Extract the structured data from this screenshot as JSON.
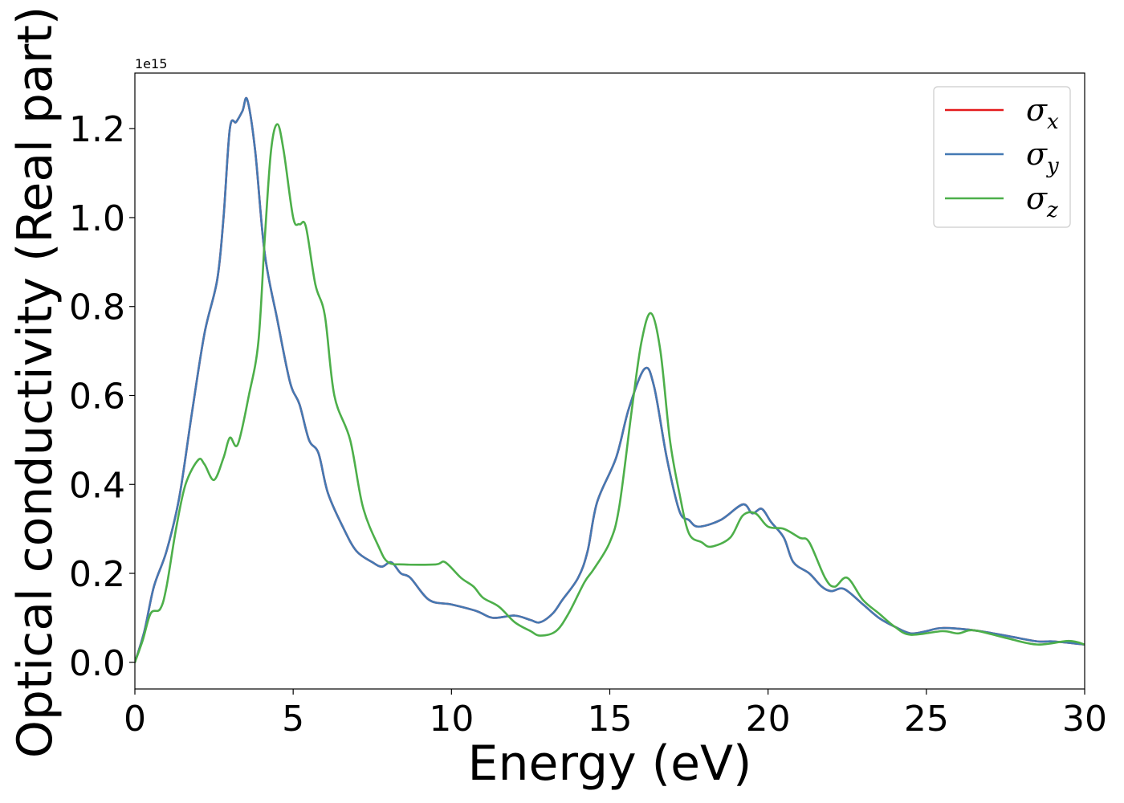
{
  "chart_data": {
    "type": "line",
    "title": "",
    "xlabel": "Energy (eV)",
    "ylabel": "Optical conductivity (Real part)",
    "y_offset_label": "1e15",
    "xlim": [
      0,
      30
    ],
    "ylim": [
      -0.06,
      1.325
    ],
    "x_ticks": [
      0,
      5,
      10,
      15,
      20,
      25,
      30
    ],
    "x_tick_labels": [
      "0",
      "5",
      "10",
      "15",
      "20",
      "25",
      "30"
    ],
    "y_ticks": [
      0.0,
      0.2,
      0.4,
      0.6,
      0.8,
      1.0,
      1.2
    ],
    "y_tick_labels": [
      "0.0",
      "0.2",
      "0.4",
      "0.6",
      "0.8",
      "1.0",
      "1.2"
    ],
    "grid": false,
    "legend_position": "top-right",
    "series": [
      {
        "name": "σ",
        "subscript": "x",
        "color": "#e41a1c",
        "points": [
          [
            0,
            0
          ],
          [
            0.3,
            0.07
          ],
          [
            0.6,
            0.17
          ],
          [
            1.0,
            0.25
          ],
          [
            1.4,
            0.37
          ],
          [
            1.8,
            0.56
          ],
          [
            2.2,
            0.74
          ],
          [
            2.6,
            0.86
          ],
          [
            2.8,
            1.0
          ],
          [
            3.0,
            1.2
          ],
          [
            3.2,
            1.215
          ],
          [
            3.4,
            1.24
          ],
          [
            3.55,
            1.265
          ],
          [
            3.8,
            1.15
          ],
          [
            4.1,
            0.92
          ],
          [
            4.5,
            0.77
          ],
          [
            4.9,
            0.63
          ],
          [
            5.2,
            0.58
          ],
          [
            5.5,
            0.5
          ],
          [
            5.8,
            0.47
          ],
          [
            6.1,
            0.38
          ],
          [
            6.6,
            0.3
          ],
          [
            7.0,
            0.25
          ],
          [
            7.5,
            0.225
          ],
          [
            7.8,
            0.215
          ],
          [
            8.1,
            0.225
          ],
          [
            8.4,
            0.2
          ],
          [
            8.7,
            0.19
          ],
          [
            9.3,
            0.14
          ],
          [
            10.0,
            0.13
          ],
          [
            10.8,
            0.115
          ],
          [
            11.3,
            0.1
          ],
          [
            12.0,
            0.105
          ],
          [
            12.5,
            0.095
          ],
          [
            12.8,
            0.09
          ],
          [
            13.2,
            0.11
          ],
          [
            13.5,
            0.14
          ],
          [
            14.0,
            0.19
          ],
          [
            14.3,
            0.25
          ],
          [
            14.6,
            0.36
          ],
          [
            15.2,
            0.46
          ],
          [
            15.6,
            0.57
          ],
          [
            16.1,
            0.66
          ],
          [
            16.4,
            0.62
          ],
          [
            16.8,
            0.46
          ],
          [
            17.2,
            0.34
          ],
          [
            17.5,
            0.32
          ],
          [
            17.8,
            0.305
          ],
          [
            18.5,
            0.32
          ],
          [
            19.2,
            0.355
          ],
          [
            19.5,
            0.335
          ],
          [
            19.8,
            0.345
          ],
          [
            20.1,
            0.315
          ],
          [
            20.5,
            0.28
          ],
          [
            20.8,
            0.225
          ],
          [
            21.3,
            0.2
          ],
          [
            21.7,
            0.17
          ],
          [
            22.0,
            0.16
          ],
          [
            22.4,
            0.165
          ],
          [
            23.0,
            0.13
          ],
          [
            23.5,
            0.1
          ],
          [
            24.0,
            0.08
          ],
          [
            24.5,
            0.065
          ],
          [
            25.0,
            0.07
          ],
          [
            25.5,
            0.077
          ],
          [
            26.5,
            0.072
          ],
          [
            27.5,
            0.06
          ],
          [
            28.5,
            0.047
          ],
          [
            29.0,
            0.047
          ],
          [
            30.0,
            0.04
          ]
        ]
      },
      {
        "name": "σ",
        "subscript": "y",
        "color": "#4479b3",
        "points": [
          [
            0,
            0
          ],
          [
            0.3,
            0.07
          ],
          [
            0.6,
            0.17
          ],
          [
            1.0,
            0.25
          ],
          [
            1.4,
            0.37
          ],
          [
            1.8,
            0.56
          ],
          [
            2.2,
            0.74
          ],
          [
            2.6,
            0.86
          ],
          [
            2.8,
            1.0
          ],
          [
            3.0,
            1.2
          ],
          [
            3.2,
            1.215
          ],
          [
            3.4,
            1.24
          ],
          [
            3.55,
            1.265
          ],
          [
            3.8,
            1.15
          ],
          [
            4.1,
            0.92
          ],
          [
            4.5,
            0.77
          ],
          [
            4.9,
            0.63
          ],
          [
            5.2,
            0.58
          ],
          [
            5.5,
            0.5
          ],
          [
            5.8,
            0.47
          ],
          [
            6.1,
            0.38
          ],
          [
            6.6,
            0.3
          ],
          [
            7.0,
            0.25
          ],
          [
            7.5,
            0.225
          ],
          [
            7.8,
            0.215
          ],
          [
            8.1,
            0.225
          ],
          [
            8.4,
            0.2
          ],
          [
            8.7,
            0.19
          ],
          [
            9.3,
            0.14
          ],
          [
            10.0,
            0.13
          ],
          [
            10.8,
            0.115
          ],
          [
            11.3,
            0.1
          ],
          [
            12.0,
            0.105
          ],
          [
            12.5,
            0.095
          ],
          [
            12.8,
            0.09
          ],
          [
            13.2,
            0.11
          ],
          [
            13.5,
            0.14
          ],
          [
            14.0,
            0.19
          ],
          [
            14.3,
            0.25
          ],
          [
            14.6,
            0.36
          ],
          [
            15.2,
            0.46
          ],
          [
            15.6,
            0.57
          ],
          [
            16.1,
            0.66
          ],
          [
            16.4,
            0.62
          ],
          [
            16.8,
            0.46
          ],
          [
            17.2,
            0.34
          ],
          [
            17.5,
            0.32
          ],
          [
            17.8,
            0.305
          ],
          [
            18.5,
            0.32
          ],
          [
            19.2,
            0.355
          ],
          [
            19.5,
            0.335
          ],
          [
            19.8,
            0.345
          ],
          [
            20.1,
            0.315
          ],
          [
            20.5,
            0.28
          ],
          [
            20.8,
            0.225
          ],
          [
            21.3,
            0.2
          ],
          [
            21.7,
            0.17
          ],
          [
            22.0,
            0.16
          ],
          [
            22.4,
            0.165
          ],
          [
            23.0,
            0.13
          ],
          [
            23.5,
            0.1
          ],
          [
            24.0,
            0.08
          ],
          [
            24.5,
            0.065
          ],
          [
            25.0,
            0.07
          ],
          [
            25.5,
            0.077
          ],
          [
            26.5,
            0.072
          ],
          [
            27.5,
            0.06
          ],
          [
            28.5,
            0.047
          ],
          [
            29.0,
            0.047
          ],
          [
            30.0,
            0.04
          ]
        ]
      },
      {
        "name": "σ",
        "subscript": "z",
        "color": "#4daf4a",
        "points": [
          [
            0,
            0
          ],
          [
            0.25,
            0.05
          ],
          [
            0.5,
            0.11
          ],
          [
            0.8,
            0.12
          ],
          [
            1.0,
            0.17
          ],
          [
            1.3,
            0.3
          ],
          [
            1.6,
            0.4
          ],
          [
            2.0,
            0.455
          ],
          [
            2.2,
            0.445
          ],
          [
            2.5,
            0.41
          ],
          [
            2.8,
            0.46
          ],
          [
            3.0,
            0.505
          ],
          [
            3.25,
            0.49
          ],
          [
            3.6,
            0.6
          ],
          [
            3.9,
            0.72
          ],
          [
            4.1,
            0.95
          ],
          [
            4.3,
            1.15
          ],
          [
            4.5,
            1.21
          ],
          [
            4.7,
            1.15
          ],
          [
            5.0,
            1.0
          ],
          [
            5.2,
            0.985
          ],
          [
            5.4,
            0.98
          ],
          [
            5.7,
            0.85
          ],
          [
            6.0,
            0.78
          ],
          [
            6.3,
            0.6
          ],
          [
            6.8,
            0.5
          ],
          [
            7.2,
            0.35
          ],
          [
            7.7,
            0.26
          ],
          [
            8.0,
            0.225
          ],
          [
            8.5,
            0.22
          ],
          [
            9.5,
            0.22
          ],
          [
            9.8,
            0.225
          ],
          [
            10.3,
            0.19
          ],
          [
            10.7,
            0.17
          ],
          [
            11.0,
            0.145
          ],
          [
            11.5,
            0.125
          ],
          [
            12.0,
            0.09
          ],
          [
            12.5,
            0.07
          ],
          [
            12.8,
            0.06
          ],
          [
            13.3,
            0.07
          ],
          [
            13.7,
            0.11
          ],
          [
            14.2,
            0.18
          ],
          [
            14.5,
            0.21
          ],
          [
            15.0,
            0.27
          ],
          [
            15.3,
            0.35
          ],
          [
            15.7,
            0.57
          ],
          [
            16.0,
            0.72
          ],
          [
            16.3,
            0.785
          ],
          [
            16.6,
            0.7
          ],
          [
            16.9,
            0.5
          ],
          [
            17.2,
            0.38
          ],
          [
            17.5,
            0.29
          ],
          [
            17.9,
            0.27
          ],
          [
            18.2,
            0.26
          ],
          [
            18.8,
            0.28
          ],
          [
            19.2,
            0.33
          ],
          [
            19.6,
            0.335
          ],
          [
            20.0,
            0.305
          ],
          [
            20.5,
            0.3
          ],
          [
            21.0,
            0.28
          ],
          [
            21.3,
            0.27
          ],
          [
            21.8,
            0.19
          ],
          [
            22.1,
            0.17
          ],
          [
            22.5,
            0.19
          ],
          [
            23.0,
            0.14
          ],
          [
            23.5,
            0.11
          ],
          [
            24.0,
            0.08
          ],
          [
            24.5,
            0.062
          ],
          [
            25.5,
            0.07
          ],
          [
            26.0,
            0.065
          ],
          [
            26.5,
            0.072
          ],
          [
            27.5,
            0.055
          ],
          [
            28.5,
            0.04
          ],
          [
            29.5,
            0.048
          ],
          [
            30.0,
            0.04
          ]
        ]
      }
    ]
  }
}
